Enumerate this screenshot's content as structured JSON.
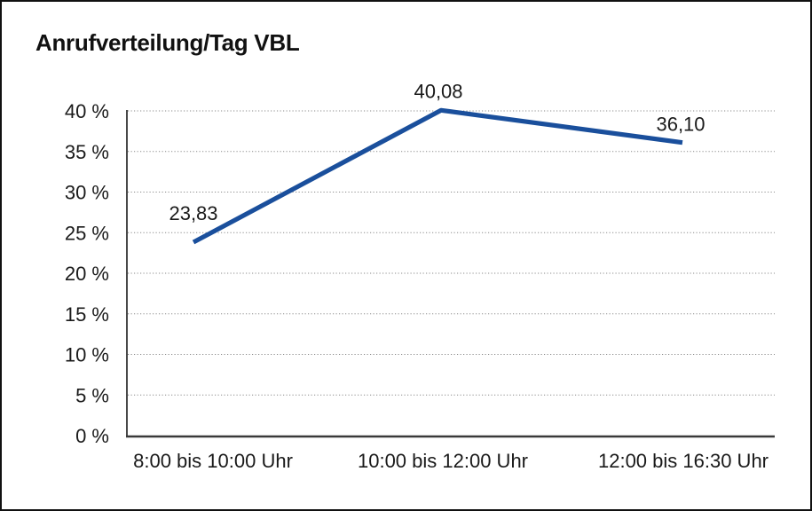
{
  "chart_data": {
    "type": "line",
    "title": "Anrufverteilung/Tag VBL",
    "categories": [
      "8:00 bis 10:00 Uhr",
      "10:00 bis 12:00 Uhr",
      "12:00 bis 16:30 Uhr"
    ],
    "values": [
      23.83,
      40.08,
      36.1
    ],
    "point_labels": [
      "23,83",
      "40,08",
      "36,10"
    ],
    "ytick_values": [
      40,
      35,
      30,
      25,
      20,
      15,
      10,
      5,
      0
    ],
    "ytick_labels": [
      "40 %",
      "35 %",
      "30 %",
      "25 %",
      "20 %",
      "15 %",
      "10 %",
      "5 %",
      "0 %"
    ],
    "ylim": [
      0,
      40
    ],
    "xlabel": "",
    "ylabel": "",
    "grid": "horizontal-dotted",
    "legend": "none",
    "colors": {
      "series_line": "#1a4f9c",
      "gridline": "#8a8a8a",
      "y_axis_line": "#1a1a1a",
      "x_axis_line": "#3a3a3a",
      "text": "#1a1a1a",
      "frame_border": "#111111",
      "background": "#ffffff"
    }
  }
}
